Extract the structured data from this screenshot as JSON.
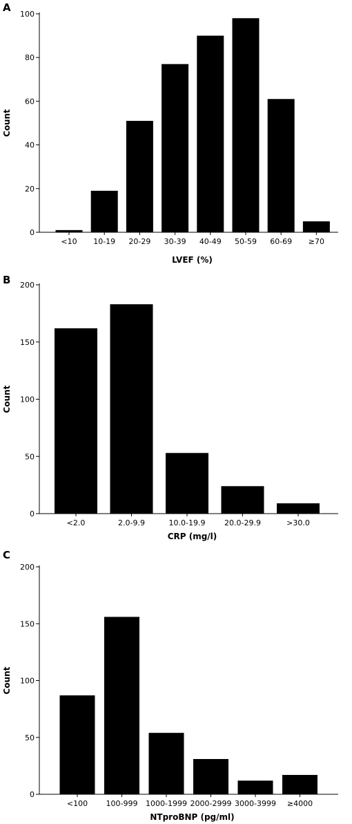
{
  "chart_data": [
    {
      "type": "bar",
      "panel": "A",
      "categories": [
        "<10",
        "10-19",
        "20-29",
        "30-39",
        "40-49",
        "50-59",
        "60-69",
        "≥70"
      ],
      "values": [
        1,
        19,
        51,
        77,
        90,
        98,
        61,
        5
      ],
      "xlabel": "LVEF (%)",
      "ylabel": "Count",
      "ylim": [
        0,
        100
      ],
      "yticks": [
        0,
        20,
        40,
        60,
        80,
        100
      ],
      "bar_color": "#000000",
      "grid": false
    },
    {
      "type": "bar",
      "panel": "B",
      "categories": [
        "<2.0",
        "2.0-9.9",
        "10.0-19.9",
        "20.0-29.9",
        ">30.0"
      ],
      "values": [
        162,
        183,
        53,
        24,
        9
      ],
      "xlabel": "CRP (mg/l)",
      "ylabel": "Count",
      "ylim": [
        0,
        200
      ],
      "yticks": [
        0,
        50,
        100,
        150,
        200
      ],
      "bar_color": "#000000",
      "grid": false
    },
    {
      "type": "bar",
      "panel": "C",
      "categories": [
        "<100",
        "100-999",
        "1000-1999",
        "2000-2999",
        "3000-3999",
        "≥4000"
      ],
      "values": [
        87,
        156,
        54,
        31,
        12,
        17
      ],
      "xlabel": "NTproBNP (pg/ml)",
      "ylabel": "Count",
      "ylim": [
        0,
        200
      ],
      "yticks": [
        0,
        50,
        100,
        150,
        200
      ],
      "bar_color": "#000000",
      "grid": false
    }
  ]
}
